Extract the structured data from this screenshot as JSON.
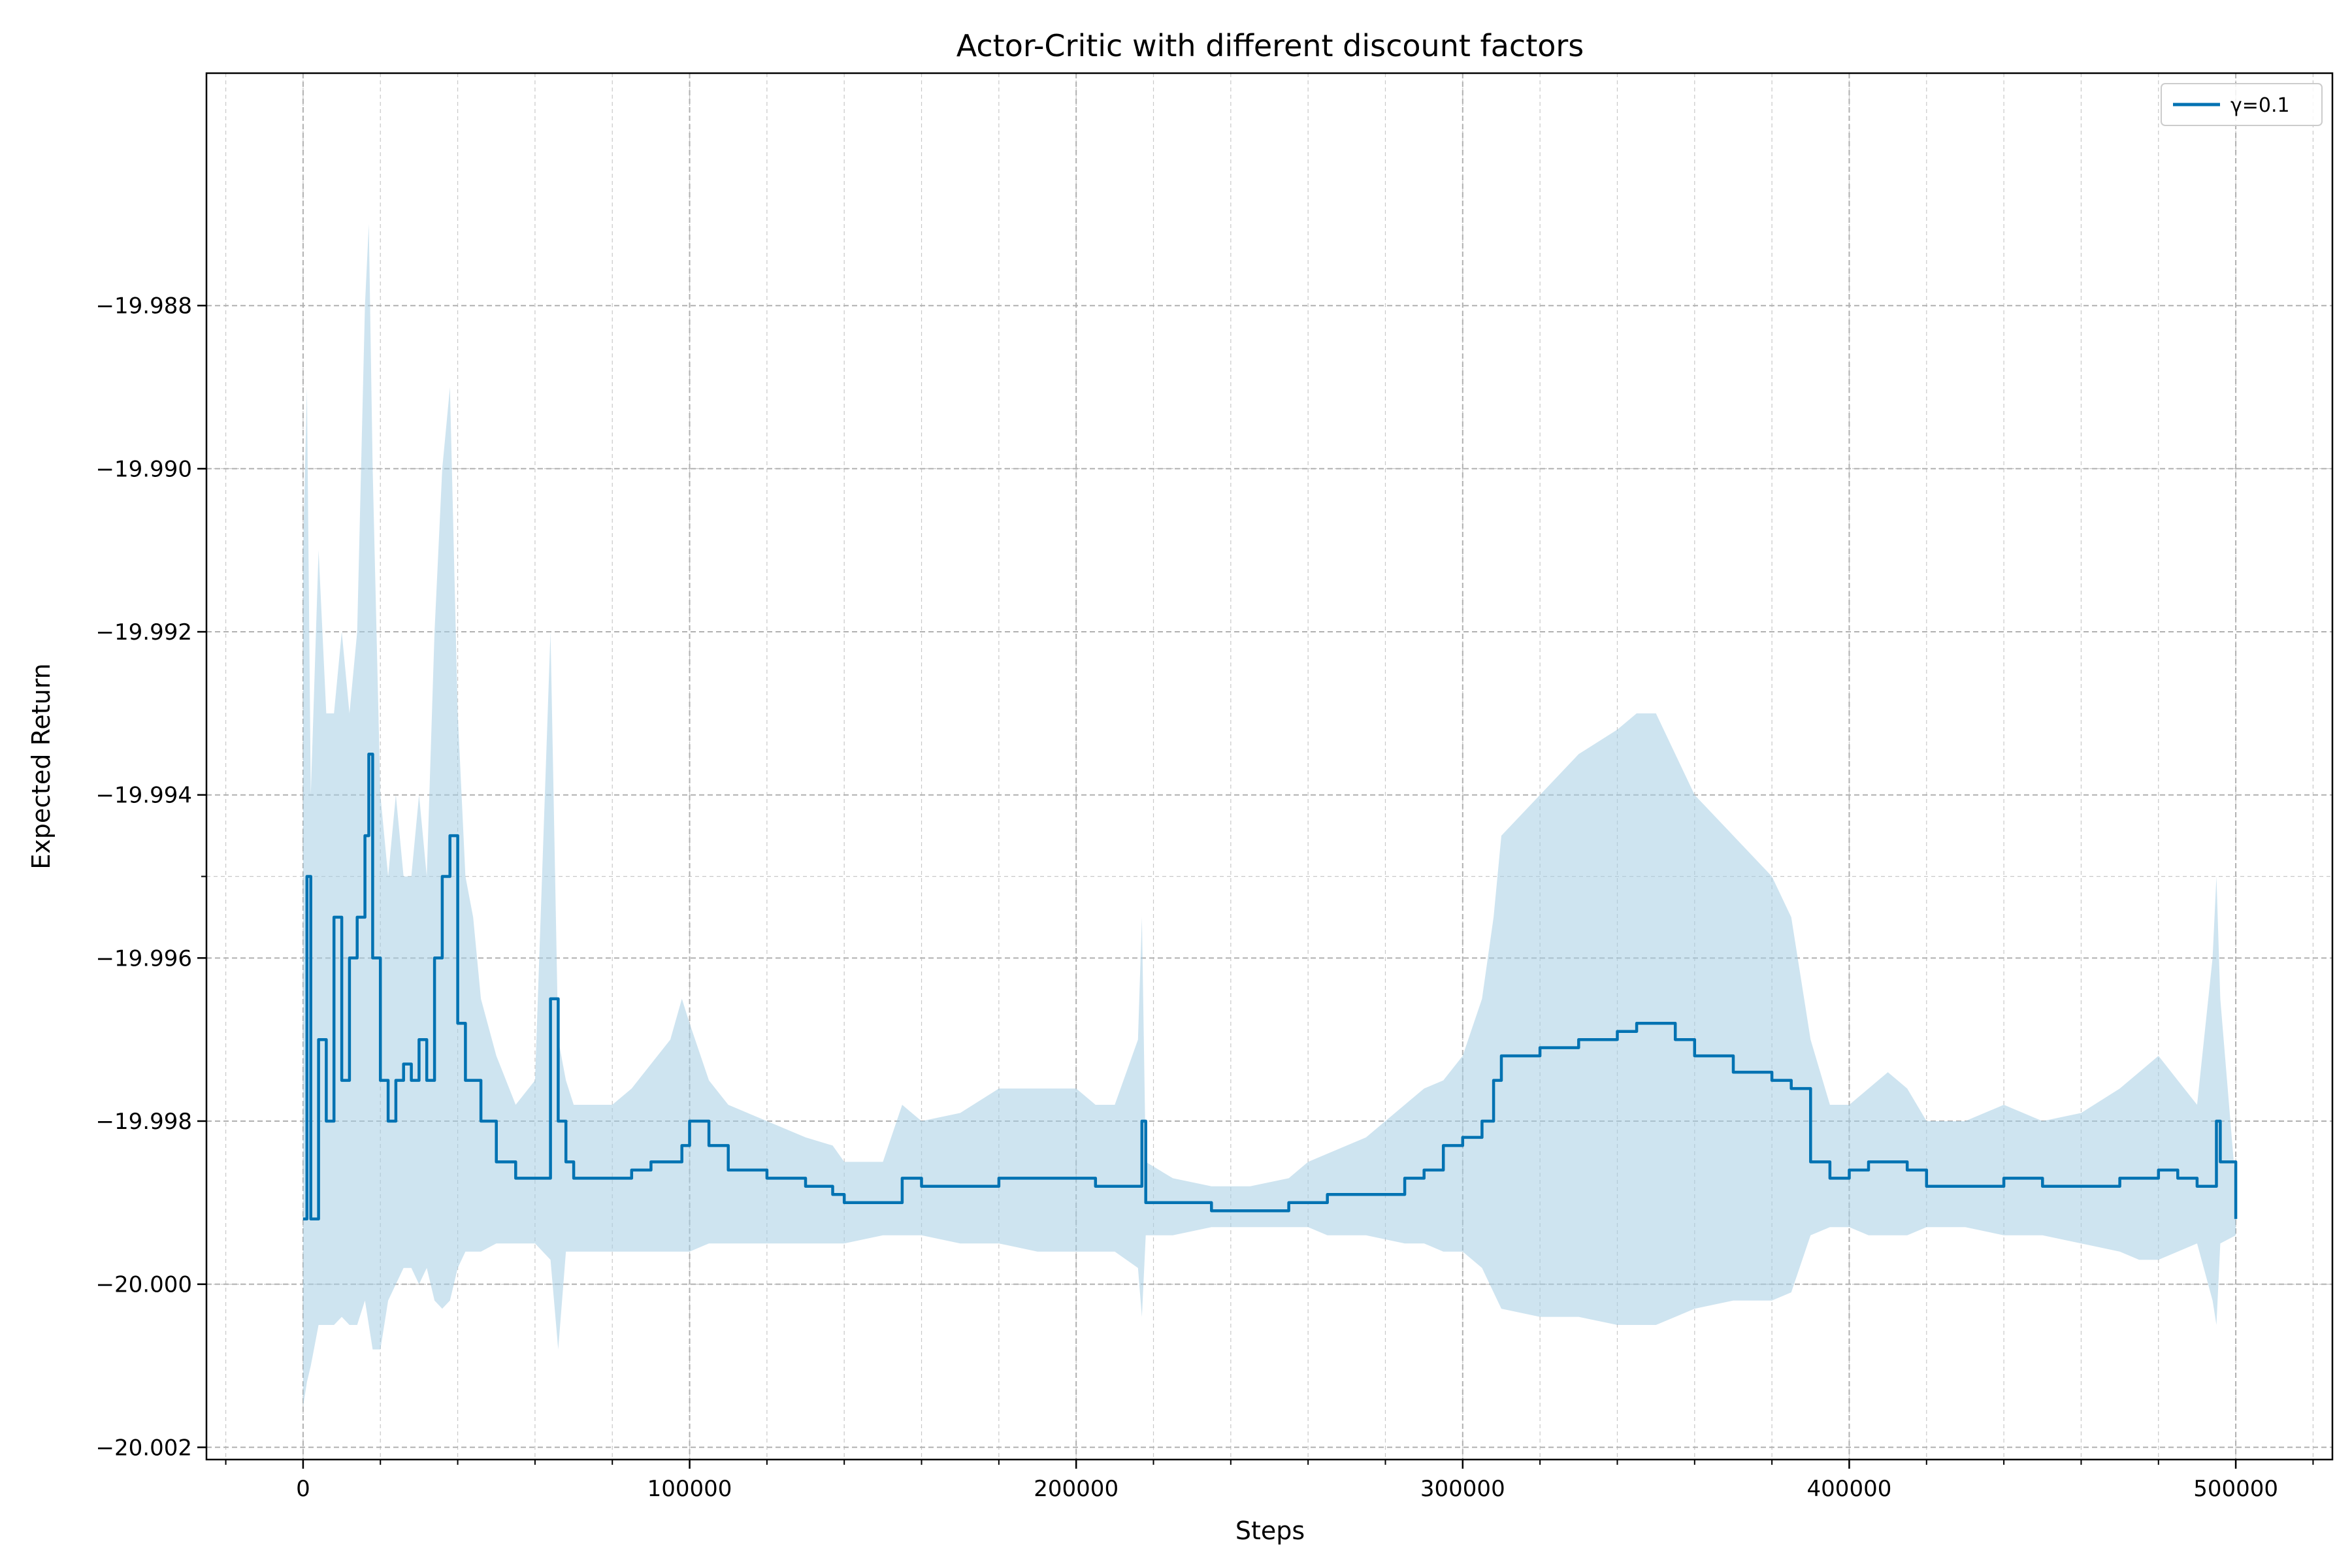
{
  "chart_data": {
    "type": "line",
    "title": "Actor-Critic with different discount factors",
    "xlabel": "Steps",
    "ylabel": "Expected Return",
    "xlim": [
      -25000,
      525000
    ],
    "ylim": [
      -20.00215,
      -19.98515
    ],
    "xticks": [
      0,
      100000,
      200000,
      300000,
      400000,
      500000
    ],
    "xtick_labels": [
      "0",
      "100000",
      "200000",
      "300000",
      "400000",
      "500000"
    ],
    "yticks": [
      -20.002,
      -20.0,
      -19.998,
      -19.996,
      -19.994,
      -19.992,
      -19.99,
      -19.988
    ],
    "ytick_labels": [
      "−20.002",
      "−20.000",
      "−19.998",
      "−19.996",
      "−19.994",
      "−19.992",
      "−19.990",
      "−19.988"
    ],
    "grid": true,
    "legend_position": "top-right",
    "colors": {
      "line": "#0072b2",
      "band": "#a6cde3"
    },
    "series": [
      {
        "name": "γ=0.1",
        "x": [
          0,
          1000,
          2000,
          4000,
          6000,
          8000,
          10000,
          12000,
          14000,
          16000,
          17000,
          18000,
          20000,
          22000,
          24000,
          26000,
          28000,
          30000,
          32000,
          34000,
          36000,
          38000,
          40000,
          42000,
          44000,
          46000,
          50000,
          55000,
          60000,
          64000,
          66000,
          68000,
          70000,
          75000,
          80000,
          85000,
          90000,
          95000,
          98000,
          100000,
          105000,
          110000,
          120000,
          130000,
          137000,
          140000,
          150000,
          155000,
          160000,
          170000,
          180000,
          190000,
          200000,
          205000,
          210000,
          216000,
          217000,
          218000,
          225000,
          235000,
          245000,
          255000,
          260000,
          265000,
          275000,
          285000,
          290000,
          295000,
          300000,
          305000,
          308000,
          310000,
          320000,
          330000,
          340000,
          345000,
          350000,
          355000,
          360000,
          370000,
          380000,
          385000,
          390000,
          395000,
          400000,
          405000,
          410000,
          415000,
          420000,
          430000,
          440000,
          450000,
          460000,
          470000,
          475000,
          480000,
          485000,
          490000,
          494000,
          495000,
          496000,
          500000
        ],
        "values": [
          -19.9992,
          -19.995,
          -19.9992,
          -19.997,
          -19.998,
          -19.9955,
          -19.9975,
          -19.996,
          -19.9955,
          -19.9945,
          -19.9935,
          -19.996,
          -19.9975,
          -19.998,
          -19.9975,
          -19.9973,
          -19.9975,
          -19.997,
          -19.9975,
          -19.996,
          -19.995,
          -19.9945,
          -19.9968,
          -19.9975,
          -19.9975,
          -19.998,
          -19.9985,
          -19.9987,
          -19.9987,
          -19.9965,
          -19.998,
          -19.9985,
          -19.9987,
          -19.9987,
          -19.9987,
          -19.9986,
          -19.9985,
          -19.9985,
          -19.9983,
          -19.998,
          -19.9983,
          -19.9986,
          -19.9987,
          -19.9988,
          -19.9989,
          -19.999,
          -19.999,
          -19.9987,
          -19.9988,
          -19.9988,
          -19.9987,
          -19.9987,
          -19.9987,
          -19.9988,
          -19.9988,
          -19.9988,
          -19.998,
          -19.999,
          -19.999,
          -19.9991,
          -19.9991,
          -19.999,
          -19.999,
          -19.9989,
          -19.9989,
          -19.9987,
          -19.9986,
          -19.9983,
          -19.9982,
          -19.998,
          -19.9975,
          -19.9972,
          -19.9971,
          -19.997,
          -19.9969,
          -19.9968,
          -19.9968,
          -19.997,
          -19.9972,
          -19.9974,
          -19.9975,
          -19.9976,
          -19.9985,
          -19.9987,
          -19.9986,
          -19.9985,
          -19.9985,
          -19.9986,
          -19.9988,
          -19.9988,
          -19.9987,
          -19.9988,
          -19.9988,
          -19.9987,
          -19.9987,
          -19.9986,
          -19.9987,
          -19.9988,
          -19.9988,
          -19.998,
          -19.9985,
          -19.9992
        ],
        "band_upper": [
          -19.991,
          -19.989,
          -19.994,
          -19.991,
          -19.993,
          -19.993,
          -19.992,
          -19.993,
          -19.992,
          -19.988,
          -19.987,
          -19.99,
          -19.994,
          -19.995,
          -19.994,
          -19.995,
          -19.995,
          -19.994,
          -19.995,
          -19.992,
          -19.99,
          -19.989,
          -19.993,
          -19.995,
          -19.9955,
          -19.9965,
          -19.9972,
          -19.9978,
          -19.9975,
          -19.992,
          -19.997,
          -19.9975,
          -19.9978,
          -19.9978,
          -19.9978,
          -19.9976,
          -19.9973,
          -19.997,
          -19.9965,
          -19.9968,
          -19.9975,
          -19.9978,
          -19.998,
          -19.9982,
          -19.9983,
          -19.9985,
          -19.9985,
          -19.9978,
          -19.998,
          -19.9979,
          -19.9976,
          -19.9976,
          -19.9976,
          -19.9978,
          -19.9978,
          -19.997,
          -19.9955,
          -19.9985,
          -19.9987,
          -19.9988,
          -19.9988,
          -19.9987,
          -19.9985,
          -19.9984,
          -19.9982,
          -19.9978,
          -19.9976,
          -19.9975,
          -19.9972,
          -19.9965,
          -19.9955,
          -19.9945,
          -19.994,
          -19.9935,
          -19.9932,
          -19.993,
          -19.993,
          -19.9935,
          -19.994,
          -19.9945,
          -19.995,
          -19.9955,
          -19.997,
          -19.9978,
          -19.9978,
          -19.9976,
          -19.9974,
          -19.9976,
          -19.998,
          -19.998,
          -19.9978,
          -19.998,
          -19.9979,
          -19.9976,
          -19.9974,
          -19.9972,
          -19.9975,
          -19.9978,
          -19.996,
          -19.995,
          -19.9965,
          -19.9988
        ],
        "band_lower": [
          -20.0015,
          -20.0012,
          -20.001,
          -20.0005,
          -20.0005,
          -20.0005,
          -20.0004,
          -20.0005,
          -20.0005,
          -20.0002,
          -20.0005,
          -20.0008,
          -20.0008,
          -20.0002,
          -20.0,
          -19.9998,
          -19.9998,
          -20.0,
          -19.9998,
          -20.0002,
          -20.0003,
          -20.0002,
          -19.9998,
          -19.9996,
          -19.9996,
          -19.9996,
          -19.9995,
          -19.9995,
          -19.9995,
          -19.9997,
          -20.0008,
          -19.9996,
          -19.9996,
          -19.9996,
          -19.9996,
          -19.9996,
          -19.9996,
          -19.9996,
          -19.9996,
          -19.9996,
          -19.9995,
          -19.9995,
          -19.9995,
          -19.9995,
          -19.9995,
          -19.9995,
          -19.9994,
          -19.9994,
          -19.9994,
          -19.9995,
          -19.9995,
          -19.9996,
          -19.9996,
          -19.9996,
          -19.9996,
          -19.9998,
          -20.0004,
          -19.9994,
          -19.9994,
          -19.9993,
          -19.9993,
          -19.9993,
          -19.9993,
          -19.9994,
          -19.9994,
          -19.9995,
          -19.9995,
          -19.9996,
          -19.9996,
          -19.9998,
          -20.0001,
          -20.0003,
          -20.0004,
          -20.0004,
          -20.0005,
          -20.0005,
          -20.0005,
          -20.0004,
          -20.0003,
          -20.0002,
          -20.0002,
          -20.0001,
          -19.9994,
          -19.9993,
          -19.9993,
          -19.9994,
          -19.9994,
          -19.9994,
          -19.9993,
          -19.9993,
          -19.9994,
          -19.9994,
          -19.9995,
          -19.9996,
          -19.9997,
          -19.9997,
          -19.9996,
          -19.9995,
          -20.0002,
          -20.0005,
          -19.9995,
          -19.9994
        ]
      }
    ]
  }
}
